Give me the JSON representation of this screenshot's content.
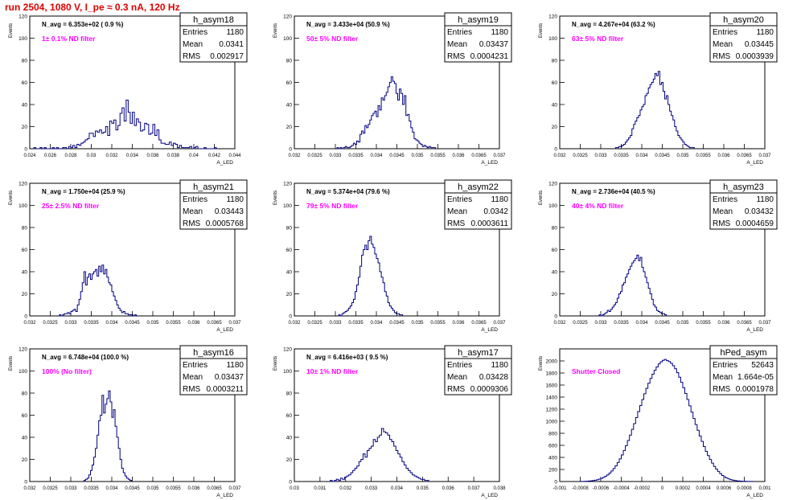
{
  "run_title": "run 2504,  1080 V, I_pe ≈ 0.3 nA, 120 Hz",
  "stat_labels": {
    "entries": "Entries",
    "mean": "Mean",
    "rms": "RMS"
  },
  "colors": {
    "hist": "#000080",
    "filter_text": "#ff00ff",
    "title": "#e00000",
    "navg_text": "#000000"
  },
  "chart_data": [
    {
      "type": "bar",
      "name": "h_asym18",
      "ylabel": "Events",
      "xlabel": "A_LED",
      "n_avg": "N_avg = 6.353e+02 ( 0.9 %)",
      "filter": "1± 0.1% ND filter",
      "entries": "1180",
      "mean": "0.0341",
      "rms": "0.002917",
      "xlim": [
        0.024,
        0.044
      ],
      "ylim": [
        0,
        120
      ],
      "xticks": [
        "0.024",
        "0.026",
        "0.028",
        "0.03",
        "0.032",
        "0.034",
        "0.036",
        "0.038",
        "0.04",
        "0.042",
        "0.044"
      ],
      "yticks": [
        "0",
        "20",
        "40",
        "60",
        "80",
        "100",
        "120"
      ],
      "bin_start": 0.0244,
      "bin_width": 0.0002,
      "values": [
        1,
        0,
        0,
        1,
        0,
        1,
        0,
        0,
        0,
        1,
        0,
        1,
        0,
        0,
        1,
        1,
        0,
        2,
        1,
        3,
        1,
        4,
        3,
        5,
        6,
        8,
        9,
        14,
        14,
        11,
        16,
        15,
        17,
        14,
        15,
        20,
        12,
        25,
        23,
        26,
        17,
        21,
        32,
        37,
        25,
        44,
        33,
        23,
        33,
        21,
        27,
        24,
        16,
        17,
        23,
        22,
        13,
        14,
        22,
        12,
        17,
        8,
        5,
        5,
        4,
        4,
        6,
        3,
        5,
        4,
        1,
        3,
        1,
        1,
        1,
        1,
        2,
        0,
        1,
        2,
        0,
        0,
        0,
        1,
        0,
        0,
        0,
        0,
        1
      ]
    },
    {
      "type": "bar",
      "name": "h_asym19",
      "ylabel": "Events",
      "xlabel": "A_LED",
      "n_avg": "N_avg = 3.433e+04 (50.9 %)",
      "filter": "50± 5% ND filter",
      "entries": "1180",
      "mean": "0.03437",
      "rms": "0.0004231",
      "xlim": [
        0.032,
        0.037
      ],
      "ylim": [
        0,
        120
      ],
      "xticks": [
        "0.032",
        "0.0325",
        "0.033",
        "0.0335",
        "0.034",
        "0.0345",
        "0.035",
        "0.0355",
        "0.036",
        "0.0365",
        "0.037"
      ],
      "yticks": [
        "0",
        "20",
        "40",
        "60",
        "80",
        "100",
        "120"
      ],
      "bin_start": 0.03304,
      "bin_width": 4e-05,
      "values": [
        1,
        0,
        1,
        0,
        1,
        2,
        1,
        1,
        2,
        3,
        5,
        4,
        7,
        6,
        13,
        16,
        14,
        21,
        19,
        22,
        26,
        30,
        32,
        34,
        29,
        39,
        35,
        46,
        44,
        48,
        51,
        56,
        60,
        65,
        61,
        59,
        50,
        44,
        54,
        50,
        40,
        48,
        30,
        31,
        25,
        19,
        15,
        9,
        8,
        7,
        5,
        4,
        2,
        3,
        2,
        1,
        2,
        1,
        1,
        1
      ]
    },
    {
      "type": "bar",
      "name": "h_asym20",
      "ylabel": "Events",
      "xlabel": "A_LED",
      "n_avg": "N_avg = 4.267e+04 (63.2 %)",
      "filter": "63± 5% ND filter",
      "entries": "1180",
      "mean": "0.03445",
      "rms": "0.0003939",
      "xlim": [
        0.032,
        0.037
      ],
      "ylim": [
        0,
        120
      ],
      "xticks": [
        "0.032",
        "0.0325",
        "0.033",
        "0.0335",
        "0.034",
        "0.0345",
        "0.035",
        "0.0355",
        "0.036",
        "0.0365",
        "0.037"
      ],
      "yticks": [
        "0",
        "20",
        "40",
        "60",
        "80",
        "100",
        "120"
      ],
      "bin_start": 0.03336,
      "bin_width": 4e-05,
      "values": [
        1,
        1,
        2,
        2,
        3,
        4,
        6,
        8,
        10,
        12,
        18,
        22,
        25,
        28,
        30,
        35,
        38,
        40,
        48,
        50,
        55,
        58,
        60,
        63,
        68,
        66,
        70,
        58,
        60,
        52,
        45,
        48,
        40,
        34,
        30,
        26,
        20,
        16,
        12,
        10,
        8,
        6,
        4,
        3,
        2,
        1,
        1,
        1
      ]
    },
    {
      "type": "bar",
      "name": "h_asym21",
      "ylabel": "Events",
      "xlabel": "A_LED",
      "n_avg": "N_avg = 1.750e+04 (25.9 %)",
      "filter": "25± 2.5% ND filter",
      "entries": "1180",
      "mean": "0.03443",
      "rms": "0.0005768",
      "xlim": [
        0.032,
        0.037
      ],
      "ylim": [
        0,
        120
      ],
      "xticks": [
        "0.032",
        "0.0325",
        "0.033",
        "0.0335",
        "0.034",
        "0.0345",
        "0.035",
        "0.0355",
        "0.036",
        "0.0365",
        "0.037"
      ],
      "yticks": [
        "0",
        "20",
        "40",
        "60",
        "80",
        "100",
        "120"
      ],
      "bin_start": 0.03272,
      "bin_width": 4e-05,
      "values": [
        1,
        0,
        1,
        2,
        2,
        3,
        2,
        4,
        5,
        6,
        4,
        10,
        15,
        22,
        30,
        40,
        28,
        35,
        38,
        33,
        38,
        40,
        42,
        36,
        45,
        40,
        46,
        38,
        42,
        35,
        30,
        28,
        22,
        18,
        14,
        10,
        7,
        5,
        3,
        4,
        2,
        2,
        1,
        1,
        1,
        0,
        1
      ]
    },
    {
      "type": "bar",
      "name": "h_asym22",
      "ylabel": "Events",
      "xlabel": "A_LED",
      "n_avg": "N_avg = 5.374e+04 (79.6 %)",
      "filter": "79± 5% ND filter",
      "entries": "1180",
      "mean": "0.0342",
      "rms": "0.0003611",
      "xlim": [
        0.032,
        0.037
      ],
      "ylim": [
        0,
        120
      ],
      "xticks": [
        "0.032",
        "0.0325",
        "0.033",
        "0.0335",
        "0.034",
        "0.0345",
        "0.035",
        "0.0355",
        "0.036",
        "0.0365",
        "0.037"
      ],
      "yticks": [
        "0",
        "20",
        "40",
        "60",
        "80",
        "100",
        "120"
      ],
      "bin_start": 0.03308,
      "bin_width": 4e-05,
      "values": [
        1,
        0,
        2,
        3,
        4,
        5,
        7,
        9,
        12,
        15,
        22,
        28,
        35,
        45,
        55,
        60,
        64,
        60,
        68,
        72,
        65,
        62,
        56,
        52,
        48,
        40,
        35,
        30,
        22,
        18,
        12,
        9,
        7,
        5,
        3,
        2,
        2,
        1,
        1
      ]
    },
    {
      "type": "bar",
      "name": "h_asym23",
      "ylabel": "Events",
      "xlabel": "A_LED",
      "n_avg": "N_avg = 2.736e+04 (40.5 %)",
      "filter": "40± 4% ND filter",
      "entries": "1180",
      "mean": "0.03432",
      "rms": "0.0004659",
      "xlim": [
        0.032,
        0.037
      ],
      "ylim": [
        0,
        120
      ],
      "xticks": [
        "0.032",
        "0.0325",
        "0.033",
        "0.0335",
        "0.034",
        "0.0345",
        "0.035",
        "0.0355",
        "0.036",
        "0.0365",
        "0.037"
      ],
      "yticks": [
        "0",
        "20",
        "40",
        "60",
        "80",
        "100",
        "120"
      ],
      "bin_start": 0.03296,
      "bin_width": 4e-05,
      "values": [
        1,
        0,
        1,
        2,
        3,
        5,
        4,
        6,
        8,
        10,
        12,
        16,
        20,
        22,
        28,
        30,
        35,
        38,
        42,
        45,
        48,
        50,
        52,
        55,
        50,
        53,
        44,
        40,
        35,
        30,
        25,
        20,
        15,
        10,
        8,
        5,
        4,
        3,
        2,
        2,
        1
      ]
    },
    {
      "type": "bar",
      "name": "h_asym16",
      "ylabel": "Events",
      "xlabel": "A_LED",
      "n_avg": "N_avg = 6.748e+04 (100.0 %)",
      "filter": "100% (No filter)",
      "entries": "1180",
      "mean": "0.03437",
      "rms": "0.0003211",
      "xlim": [
        0.032,
        0.037
      ],
      "ylim": [
        0,
        120
      ],
      "xticks": [
        "0.032",
        "0.0325",
        "0.033",
        "0.0335",
        "0.034",
        "0.0345",
        "0.035",
        "0.0355",
        "0.036",
        "0.0365",
        "0.037"
      ],
      "yticks": [
        "0",
        "20",
        "40",
        "60",
        "80",
        "100",
        "120"
      ],
      "bin_start": 0.03332,
      "bin_width": 4e-05,
      "values": [
        1,
        2,
        3,
        6,
        10,
        15,
        22,
        30,
        42,
        55,
        60,
        78,
        62,
        70,
        75,
        82,
        72,
        58,
        65,
        50,
        40,
        30,
        20,
        12,
        8,
        5,
        3,
        2,
        1
      ]
    },
    {
      "type": "bar",
      "name": "h_asym17",
      "ylabel": "Events",
      "xlabel": "A_LED",
      "n_avg": "N_avg = 6.416e+03 ( 9.5 %)",
      "filter": "10± 1% ND filter",
      "entries": "1180",
      "mean": "0.03428",
      "rms": "0.0009306",
      "xlim": [
        0.03,
        0.038
      ],
      "ylim": [
        0,
        120
      ],
      "xticks": [
        "0.03",
        "0.031",
        "0.032",
        "0.033",
        "0.034",
        "0.035",
        "0.036",
        "0.037",
        "0.038"
      ],
      "yticks": [
        "0",
        "20",
        "40",
        "60",
        "80",
        "100",
        "120"
      ],
      "bin_start": 0.0314,
      "bin_width": 8e-05,
      "values": [
        1,
        0,
        1,
        2,
        1,
        3,
        2,
        4,
        5,
        6,
        8,
        10,
        12,
        14,
        18,
        20,
        25,
        22,
        28,
        30,
        32,
        38,
        36,
        40,
        42,
        48,
        45,
        44,
        42,
        38,
        36,
        32,
        28,
        25,
        22,
        18,
        15,
        12,
        10,
        8,
        6,
        5,
        4,
        3,
        2,
        2,
        1,
        1
      ]
    },
    {
      "type": "bar",
      "name": "hPed_asym",
      "ylabel": "Events",
      "xlabel": "A_LED",
      "n_avg": "",
      "filter": "Shutter Closed",
      "entries": "52643",
      "mean": "1.664e-05",
      "rms": "0.0001978",
      "xlim": [
        -0.001,
        0.001
      ],
      "ylim": [
        0,
        2200
      ],
      "xticks": [
        "-0.001",
        "-0.0008",
        "-0.0006",
        "-0.0004",
        "-0.0002",
        "0",
        "0.0002",
        "0.0004",
        "0.0006",
        "0.0008",
        "0.001"
      ],
      "yticks": [
        "0",
        "200",
        "400",
        "600",
        "800",
        "1000",
        "1200",
        "1400",
        "1600",
        "1800",
        "2000"
      ],
      "bin_start": -0.0008,
      "bin_width": 2e-05,
      "values": [
        1,
        2,
        3,
        5,
        8,
        12,
        16,
        22,
        30,
        40,
        52,
        68,
        88,
        110,
        140,
        175,
        215,
        260,
        315,
        375,
        440,
        515,
        595,
        680,
        770,
        865,
        960,
        1060,
        1160,
        1260,
        1360,
        1455,
        1545,
        1630,
        1710,
        1780,
        1845,
        1900,
        1950,
        1985,
        2010,
        2025,
        2005,
        1990,
        1960,
        1920,
        1870,
        1805,
        1730,
        1645,
        1555,
        1460,
        1360,
        1255,
        1150,
        1045,
        945,
        850,
        755,
        665,
        580,
        500,
        430,
        365,
        305,
        250,
        205,
        165,
        130,
        100,
        76,
        58,
        43,
        32,
        23,
        17,
        12,
        9,
        6,
        4,
        3,
        2,
        1,
        1
      ]
    }
  ]
}
